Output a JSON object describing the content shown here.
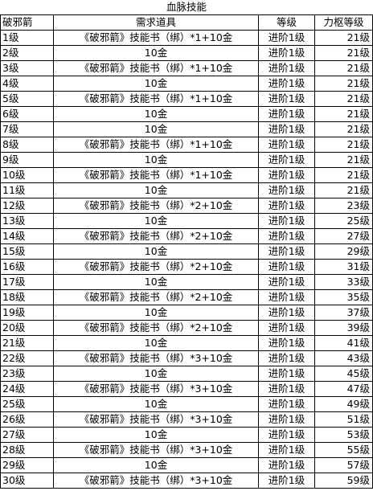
{
  "title": "血脉技能",
  "headers": [
    "破邪箭",
    "需求道具",
    "等级",
    "力枢等级"
  ],
  "rows": [
    [
      "1级",
      "《破邪箭》技能书（绑）*1+10金",
      "进阶1级",
      "21级"
    ],
    [
      "2级",
      "10金",
      "进阶1级",
      "21级"
    ],
    [
      "3级",
      "《破邪箭》技能书（绑）*1+10金",
      "进阶1级",
      "21级"
    ],
    [
      "4级",
      "10金",
      "进阶1级",
      "21级"
    ],
    [
      "5级",
      "《破邪箭》技能书（绑）*1+10金",
      "进阶1级",
      "21级"
    ],
    [
      "6级",
      "10金",
      "进阶1级",
      "21级"
    ],
    [
      "7级",
      "10金",
      "进阶1级",
      "21级"
    ],
    [
      "8级",
      "《破邪箭》技能书（绑）*1+10金",
      "进阶1级",
      "21级"
    ],
    [
      "9级",
      "10金",
      "进阶1级",
      "21级"
    ],
    [
      "10级",
      "《破邪箭》技能书（绑）*1+10金",
      "进阶1级",
      "21级"
    ],
    [
      "11级",
      "10金",
      "进阶1级",
      "21级"
    ],
    [
      "12级",
      "《破邪箭》技能书（绑）*2+10金",
      "进阶1级",
      "23级"
    ],
    [
      "13级",
      "10金",
      "进阶1级",
      "25级"
    ],
    [
      "14级",
      "《破邪箭》技能书（绑）*2+10金",
      "进阶1级",
      "27级"
    ],
    [
      "15级",
      "10金",
      "进阶1级",
      "29级"
    ],
    [
      "16级",
      "《破邪箭》技能书（绑）*2+10金",
      "进阶1级",
      "31级"
    ],
    [
      "17级",
      "10金",
      "进阶1级",
      "33级"
    ],
    [
      "18级",
      "《破邪箭》技能书（绑）*2+10金",
      "进阶1级",
      "35级"
    ],
    [
      "19级",
      "10金",
      "进阶1级",
      "37级"
    ],
    [
      "20级",
      "《破邪箭》技能书（绑）*2+10金",
      "进阶1级",
      "39级"
    ],
    [
      "21级",
      "10金",
      "进阶1级",
      "41级"
    ],
    [
      "22级",
      "《破邪箭》技能书（绑）*3+10金",
      "进阶1级",
      "43级"
    ],
    [
      "23级",
      "10金",
      "进阶1级",
      "45级"
    ],
    [
      "24级",
      "《破邪箭》技能书（绑）*3+10金",
      "进阶1级",
      "47级"
    ],
    [
      "25级",
      "10金",
      "进阶1级",
      "49级"
    ],
    [
      "26级",
      "《破邪箭》技能书（绑）*3+10金",
      "进阶1级",
      "51级"
    ],
    [
      "27级",
      "10金",
      "进阶1级",
      "53级"
    ],
    [
      "28级",
      "《破邪箭》技能书（绑）*3+10金",
      "进阶1级",
      "55级"
    ],
    [
      "29级",
      "10金",
      "进阶1级",
      "57级"
    ],
    [
      "30级",
      "《破邪箭》技能书（绑）*3+10金",
      "进阶1级",
      "59级"
    ]
  ]
}
